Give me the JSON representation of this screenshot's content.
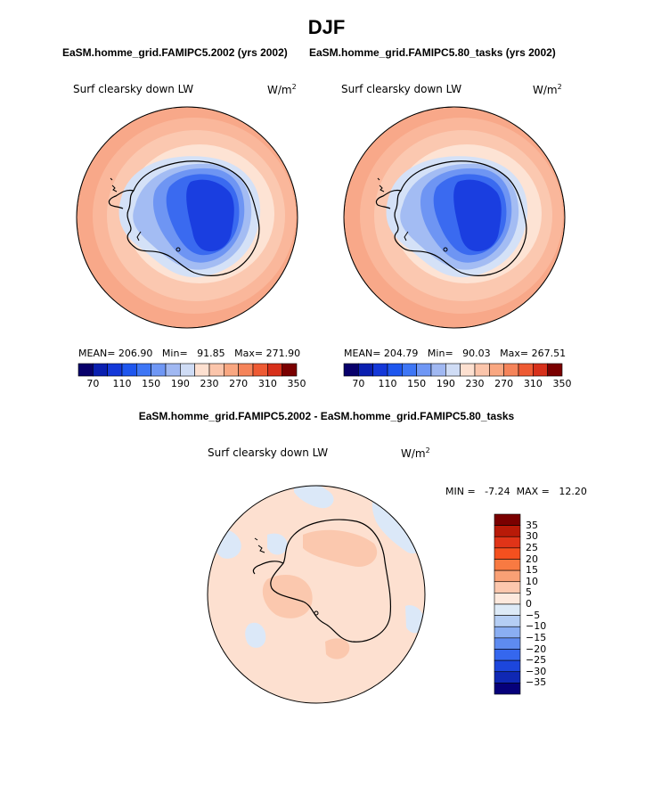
{
  "figure": {
    "title": "DJF",
    "panels": [
      {
        "title": "EaSM.homme_grid.FAMIPC5.2002 (yrs 2002)",
        "variable": "Surf clearsky down LW",
        "units": "W/m",
        "units_exp": "2",
        "stats": {
          "mean_label": "MEAN=",
          "mean": "206.90",
          "min_label": "Min=",
          "min": "91.85",
          "max_label": "Max=",
          "max": "271.90"
        }
      },
      {
        "title": "EaSM.homme_grid.FAMIPC5.80_tasks (yrs 2002)",
        "variable": "Surf clearsky down LW",
        "units": "W/m",
        "units_exp": "2",
        "stats": {
          "mean_label": "MEAN=",
          "mean": "204.79",
          "min_label": "Min=",
          "min": "90.03",
          "max_label": "Max=",
          "max": "267.51"
        }
      }
    ],
    "diff_panel": {
      "title": "EaSM.homme_grid.FAMIPC5.2002 - EaSM.homme_grid.FAMIPC5.80_tasks",
      "variable": "Surf clearsky down LW",
      "units": "W/m",
      "units_exp": "2",
      "stats_text": "MIN =   -7.24  MAX =   12.20"
    }
  },
  "chart_data": [
    {
      "type": "heatmap",
      "projection": "south-polar-stereographic",
      "title": "EaSM.homme_grid.FAMIPC5.2002 (yrs 2002)",
      "variable": "Surf clearsky down LW",
      "units": "W/m2",
      "mean": 206.9,
      "min": 91.85,
      "max": 271.9,
      "colorbar": {
        "orientation": "horizontal",
        "tick_labels": [
          "70",
          "110",
          "150",
          "190",
          "230",
          "270",
          "310",
          "350"
        ],
        "colors": [
          "#08006b",
          "#0a1fb0",
          "#1438d8",
          "#1e56ee",
          "#3e76f5",
          "#6f97f5",
          "#a0b8f2",
          "#cfdcf5",
          "#fde0d0",
          "#fbc5ab",
          "#f9a781",
          "#f5845a",
          "#ee5a33",
          "#d7301a",
          "#7a0000"
        ]
      }
    },
    {
      "type": "heatmap",
      "projection": "south-polar-stereographic",
      "title": "EaSM.homme_grid.FAMIPC5.80_tasks (yrs 2002)",
      "variable": "Surf clearsky down LW",
      "units": "W/m2",
      "mean": 204.79,
      "min": 90.03,
      "max": 267.51,
      "colorbar": {
        "orientation": "horizontal",
        "tick_labels": [
          "70",
          "110",
          "150",
          "190",
          "230",
          "270",
          "310",
          "350"
        ],
        "colors": [
          "#08006b",
          "#0a1fb0",
          "#1438d8",
          "#1e56ee",
          "#3e76f5",
          "#6f97f5",
          "#a0b8f2",
          "#cfdcf5",
          "#fde0d0",
          "#fbc5ab",
          "#f9a781",
          "#f5845a",
          "#ee5a33",
          "#d7301a",
          "#7a0000"
        ]
      }
    },
    {
      "type": "heatmap",
      "projection": "south-polar-stereographic",
      "title": "EaSM.homme_grid.FAMIPC5.2002 - EaSM.homme_grid.FAMIPC5.80_tasks",
      "variable": "Surf clearsky down LW",
      "units": "W/m2",
      "min": -7.24,
      "max": 12.2,
      "colorbar": {
        "orientation": "vertical",
        "tick_labels": [
          "35",
          "30",
          "25",
          "20",
          "15",
          "10",
          "5",
          "0",
          "−5",
          "−10",
          "−15",
          "−20",
          "−25",
          "−30",
          "−35"
        ],
        "colors": [
          "#7a0000",
          "#b81a08",
          "#e03418",
          "#f4501f",
          "#f87a42",
          "#f9a075",
          "#fcc7ad",
          "#fde9dd",
          "#ddeaf7",
          "#b5cef4",
          "#8aaef2",
          "#5e8bf0",
          "#3567ee",
          "#1c46dc",
          "#0f28b4",
          "#06007a"
        ]
      }
    }
  ],
  "colors": {
    "ocean_outer": "#f8a889",
    "ocean_mid": "#fbc8b0",
    "ocean_inner": "#fde3d4",
    "ice_light": "#d4e1f7",
    "ice_mid": "#a3bcf3",
    "ice_blue": "#6e95f3",
    "ice_dark": "#3a6af0",
    "ice_core": "#1a3ee0",
    "diff_pos": "#fde0d0",
    "diff_pos2": "#fbc8ae",
    "diff_neg": "#dbe8f8"
  }
}
